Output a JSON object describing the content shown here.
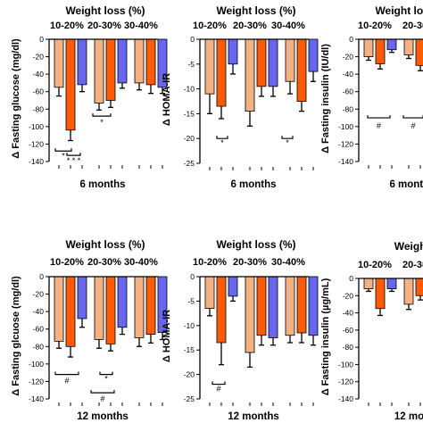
{
  "colors": {
    "light_orange": "#f4b183",
    "orange": "#ff5a0a",
    "blue": "#6666ee",
    "axis": "#000000"
  },
  "chart_data": [
    {
      "type": "bar",
      "title": "Weight loss (%)",
      "period": "6 months",
      "ylabel": "Δ Fasting glucose (mg/dl)",
      "ylim": [
        -140,
        0
      ],
      "yticks": [
        0,
        -20,
        -40,
        -60,
        -80,
        -100,
        -120,
        -140
      ],
      "categories": [
        "10-20%",
        "20-30%",
        "30-40%"
      ],
      "series": [
        {
          "color": "light_orange",
          "values": [
            -55,
            -73,
            -50
          ],
          "errors": [
            10,
            8,
            8
          ]
        },
        {
          "color": "orange",
          "values": [
            -104,
            -70,
            -52
          ],
          "errors": [
            12,
            8,
            10
          ]
        },
        {
          "color": "blue",
          "values": [
            -52,
            -50,
            -55
          ],
          "errors": [
            8,
            6,
            7
          ]
        }
      ],
      "annotations": [
        "*",
        "* * *",
        "*"
      ]
    },
    {
      "type": "bar",
      "title": "Weight loss (%)",
      "period": "6 months",
      "ylabel": "Δ HOMA-IR",
      "ylim": [
        -25,
        0
      ],
      "yticks": [
        0,
        -5,
        -10,
        -15,
        -20,
        -25
      ],
      "categories": [
        "10-20%",
        "20-30%",
        "30-40%"
      ],
      "series": [
        {
          "color": "light_orange",
          "values": [
            -11,
            -14.5,
            -8.5
          ],
          "errors": [
            4,
            3,
            2.5
          ]
        },
        {
          "color": "orange",
          "values": [
            -13.5,
            -9.5,
            -12.5
          ],
          "errors": [
            2.5,
            2,
            2
          ]
        },
        {
          "color": "blue",
          "values": [
            -5,
            -9.5,
            -6.5
          ],
          "errors": [
            2,
            2,
            2
          ]
        }
      ],
      "annotations": [
        "*",
        "*"
      ]
    },
    {
      "type": "bar",
      "title": "Weight loss (%)",
      "period": "6 months",
      "ylabel": "Δ Fasting insulin (IU/dl)",
      "ylim": [
        -140,
        0
      ],
      "yticks": [
        0,
        -20,
        -40,
        -60,
        -80,
        -100,
        -120,
        -140
      ],
      "categories": [
        "10-20%",
        "20-30%"
      ],
      "series": [
        {
          "color": "light_orange",
          "values": [
            -20,
            -18
          ],
          "errors": [
            4,
            4
          ]
        },
        {
          "color": "orange",
          "values": [
            -28,
            -30
          ],
          "errors": [
            6,
            6
          ]
        },
        {
          "color": "blue",
          "values": [
            -12,
            -12
          ],
          "errors": [
            3,
            3
          ]
        }
      ],
      "annotations": [
        "#",
        "#"
      ]
    },
    {
      "type": "bar",
      "title": "Weight loss (%)",
      "period": "12 months",
      "ylabel": "Δ Fasting glcuose  (mg/dl)",
      "ylim": [
        -140,
        0
      ],
      "yticks": [
        0,
        -20,
        -40,
        -60,
        -80,
        -100,
        -120,
        -140
      ],
      "categories": [
        "10-20%",
        "20-30%",
        "30-40%"
      ],
      "series": [
        {
          "color": "light_orange",
          "values": [
            -74,
            -72,
            -70
          ],
          "errors": [
            8,
            10,
            10
          ]
        },
        {
          "color": "orange",
          "values": [
            -80,
            -77,
            -66
          ],
          "errors": [
            12,
            8,
            10
          ]
        },
        {
          "color": "blue",
          "values": [
            -48,
            -58,
            -64
          ],
          "errors": [
            10,
            8,
            8
          ]
        }
      ],
      "annotations": [
        "#",
        "*",
        "#"
      ]
    },
    {
      "type": "bar",
      "title": "Weight loss (%)",
      "period": "12 months",
      "ylabel": "Δ HOMA-IR",
      "ylim": [
        -25,
        0
      ],
      "yticks": [
        0,
        -5,
        -10,
        -15,
        -20,
        -25
      ],
      "categories": [
        "10-20%",
        "20-30%",
        "30-40%"
      ],
      "series": [
        {
          "color": "light_orange",
          "values": [
            -6.5,
            -15.5,
            -12
          ],
          "errors": [
            1.5,
            3,
            1.5
          ]
        },
        {
          "color": "orange",
          "values": [
            -13.5,
            -12,
            -11.5
          ],
          "errors": [
            4.5,
            2,
            2
          ]
        },
        {
          "color": "blue",
          "values": [
            -4,
            -12.5,
            -12
          ],
          "errors": [
            1,
            1.5,
            2
          ]
        }
      ],
      "annotations": [
        "#"
      ]
    },
    {
      "type": "bar",
      "title": "Weight l",
      "period": "12 mon",
      "ylabel": "Δ Fasting insulin (µg/mL)",
      "ylim": [
        -140,
        0
      ],
      "yticks": [
        0,
        -20,
        -40,
        -60,
        -80,
        -100,
        -120,
        -140
      ],
      "categories": [
        "10-20%",
        "20-30%"
      ],
      "series": [
        {
          "color": "light_orange",
          "values": [
            -12,
            -30
          ],
          "errors": [
            3,
            6
          ]
        },
        {
          "color": "orange",
          "values": [
            -35,
            -20
          ],
          "errors": [
            8,
            5
          ]
        },
        {
          "color": "blue",
          "values": [
            -12,
            -14
          ],
          "errors": [
            3,
            3
          ]
        }
      ],
      "annotations": []
    }
  ]
}
